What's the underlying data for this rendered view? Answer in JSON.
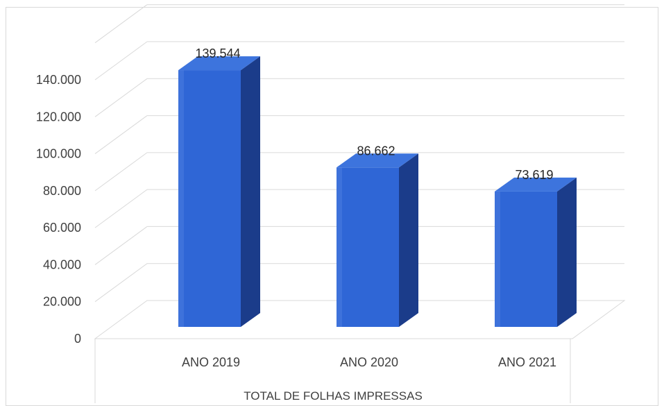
{
  "chart_data": {
    "type": "bar",
    "categories": [
      "ANO 2019",
      "ANO 2020",
      "ANO 2021"
    ],
    "values": [
      139544,
      86662,
      73619
    ],
    "data_labels": [
      "139.544",
      "86.662",
      "73.619"
    ],
    "y_tick_labels": [
      "0",
      "20.000",
      "40.000",
      "60.000",
      "80.000",
      "100.000",
      "120.000",
      "140.000"
    ],
    "ylim": [
      0,
      160000
    ],
    "group_label": "TOTAL DE FOLHAS IMPRESSAS",
    "style": "3d-column",
    "grid": true,
    "colors": {
      "bar_front": "#2f66d6",
      "bar_side": "#1b3c8a",
      "bar_top": "#3d74dd",
      "grid": "#d9d9d9"
    }
  }
}
